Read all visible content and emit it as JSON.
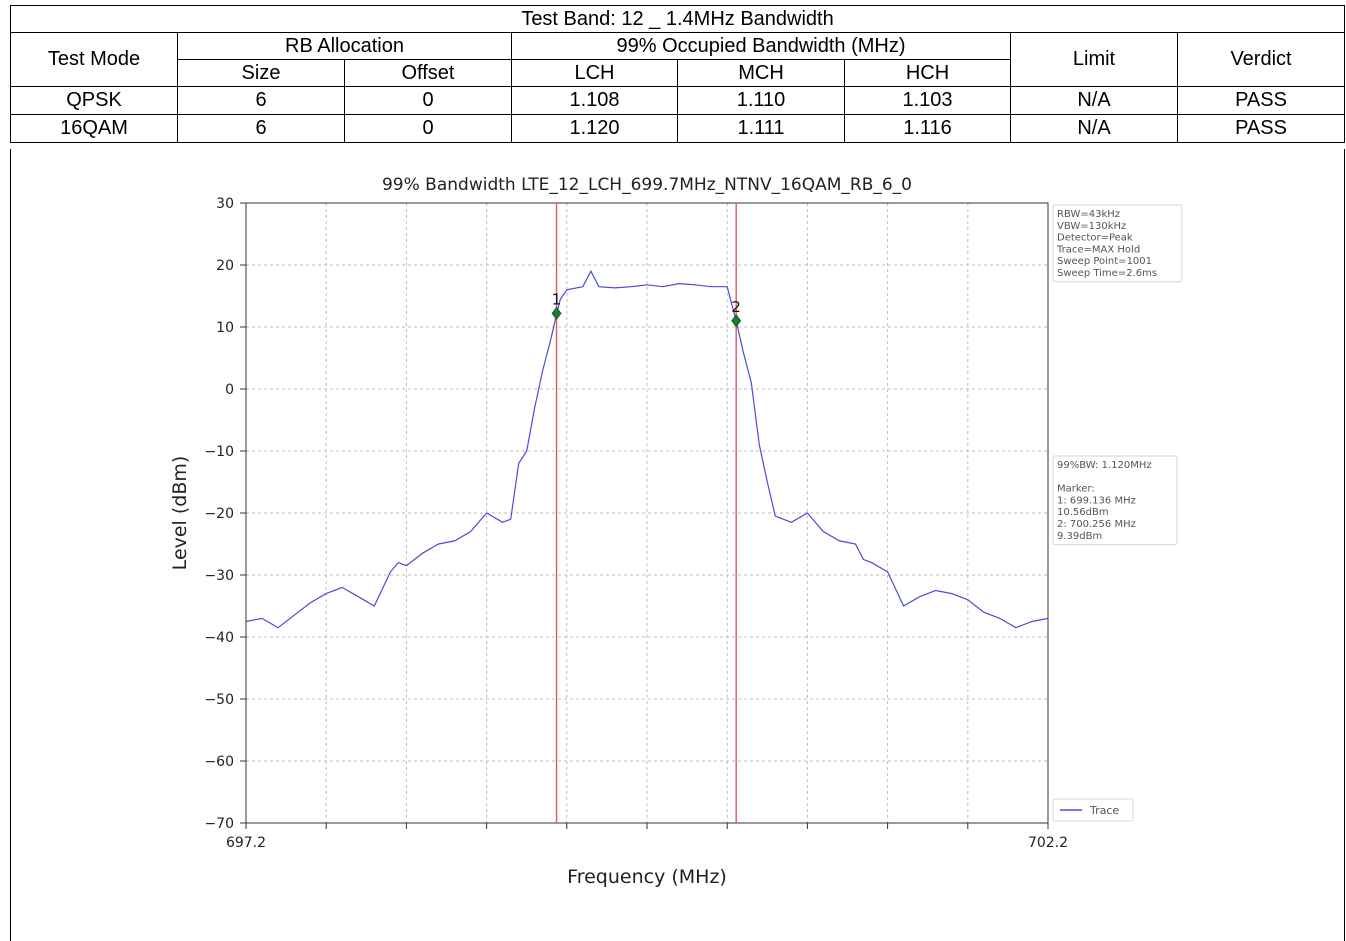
{
  "table": {
    "title": "Test Band: 12 _ 1.4MHz Bandwidth",
    "headers": {
      "test_mode": "Test Mode",
      "rb_allocation": "RB Allocation",
      "size": "Size",
      "offset": "Offset",
      "occupied_bw": "99% Occupied Bandwidth (MHz)",
      "lch": "LCH",
      "mch": "MCH",
      "hch": "HCH",
      "limit": "Limit",
      "verdict": "Verdict"
    },
    "rows": [
      {
        "mode": "QPSK",
        "size": "6",
        "offset": "0",
        "lch": "1.108",
        "mch": "1.110",
        "hch": "1.103",
        "limit": "N/A",
        "verdict": "PASS"
      },
      {
        "mode": "16QAM",
        "size": "6",
        "offset": "0",
        "lch": "1.120",
        "mch": "1.111",
        "hch": "1.116",
        "limit": "N/A",
        "verdict": "PASS"
      }
    ]
  },
  "chart_data": {
    "type": "line",
    "title": "99% Bandwidth LTE_12_LCH_699.7MHz_NTNV_16QAM_RB_6_0",
    "xlabel": "Frequency (MHz)",
    "ylabel": "Level (dBm)",
    "xlim": [
      697.2,
      702.2
    ],
    "ylim": [
      -70,
      30
    ],
    "x_tick_labels": [
      "697.2",
      "702.2"
    ],
    "y_ticks": [
      30,
      20,
      10,
      0,
      -10,
      -20,
      -30,
      -40,
      -50,
      -60,
      -70
    ],
    "grid": true,
    "settings_box": [
      "RBW=43kHz",
      "VBW=130kHz",
      "Detector=Peak",
      "Trace=MAX Hold",
      "Sweep Point=1001",
      "Sweep Time=2.6ms"
    ],
    "result_box": [
      "99%BW: 1.120MHz",
      "",
      "Marker:",
      "1: 699.136 MHz",
      "    10.56dBm",
      "2: 700.256 MHz",
      "    9.39dBm"
    ],
    "markers": [
      {
        "label": "1",
        "x": 699.136,
        "y": 10.56,
        "level_shown": 12.2
      },
      {
        "label": "2",
        "x": 700.256,
        "y": 9.39,
        "level_shown": 11.0
      }
    ],
    "legend": {
      "entries": [
        "Trace"
      ],
      "location": "lower-right"
    },
    "series": [
      {
        "name": "Trace",
        "color": "#4b4bdc",
        "x": [
          697.2,
          697.3,
          697.4,
          697.5,
          697.6,
          697.7,
          697.8,
          697.9,
          698.0,
          698.1,
          698.15,
          698.2,
          698.3,
          698.4,
          698.5,
          698.6,
          698.7,
          698.8,
          698.85,
          698.9,
          698.95,
          699.0,
          699.05,
          699.1,
          699.136,
          699.16,
          699.2,
          699.3,
          699.35,
          699.4,
          699.5,
          699.6,
          699.7,
          699.8,
          699.9,
          700.0,
          700.1,
          700.2,
          700.256,
          700.3,
          700.35,
          700.4,
          700.45,
          700.5,
          700.6,
          700.7,
          700.8,
          700.9,
          701.0,
          701.05,
          701.1,
          701.2,
          701.3,
          701.4,
          701.5,
          701.6,
          701.7,
          701.8,
          701.9,
          702.0,
          702.1,
          702.2
        ],
        "y": [
          -37.5,
          -37.0,
          -38.5,
          -36.5,
          -34.5,
          -33.0,
          -32.0,
          -33.5,
          -35.0,
          -29.5,
          -28.0,
          -28.5,
          -26.5,
          -25.0,
          -24.5,
          -23.0,
          -20.0,
          -21.5,
          -21.0,
          -12.0,
          -10.0,
          -3.0,
          3.0,
          8.0,
          12.0,
          14.5,
          16.0,
          16.5,
          19.0,
          16.5,
          16.3,
          16.5,
          16.8,
          16.5,
          17.0,
          16.8,
          16.5,
          16.5,
          11.0,
          6.0,
          1.0,
          -9.0,
          -15.0,
          -20.5,
          -21.5,
          -20.0,
          -23.0,
          -24.5,
          -25.0,
          -27.5,
          -28.0,
          -29.5,
          -35.0,
          -33.5,
          -32.5,
          -33.0,
          -34.0,
          -36.0,
          -37.0,
          -38.5,
          -37.5,
          -37.0
        ]
      }
    ]
  }
}
